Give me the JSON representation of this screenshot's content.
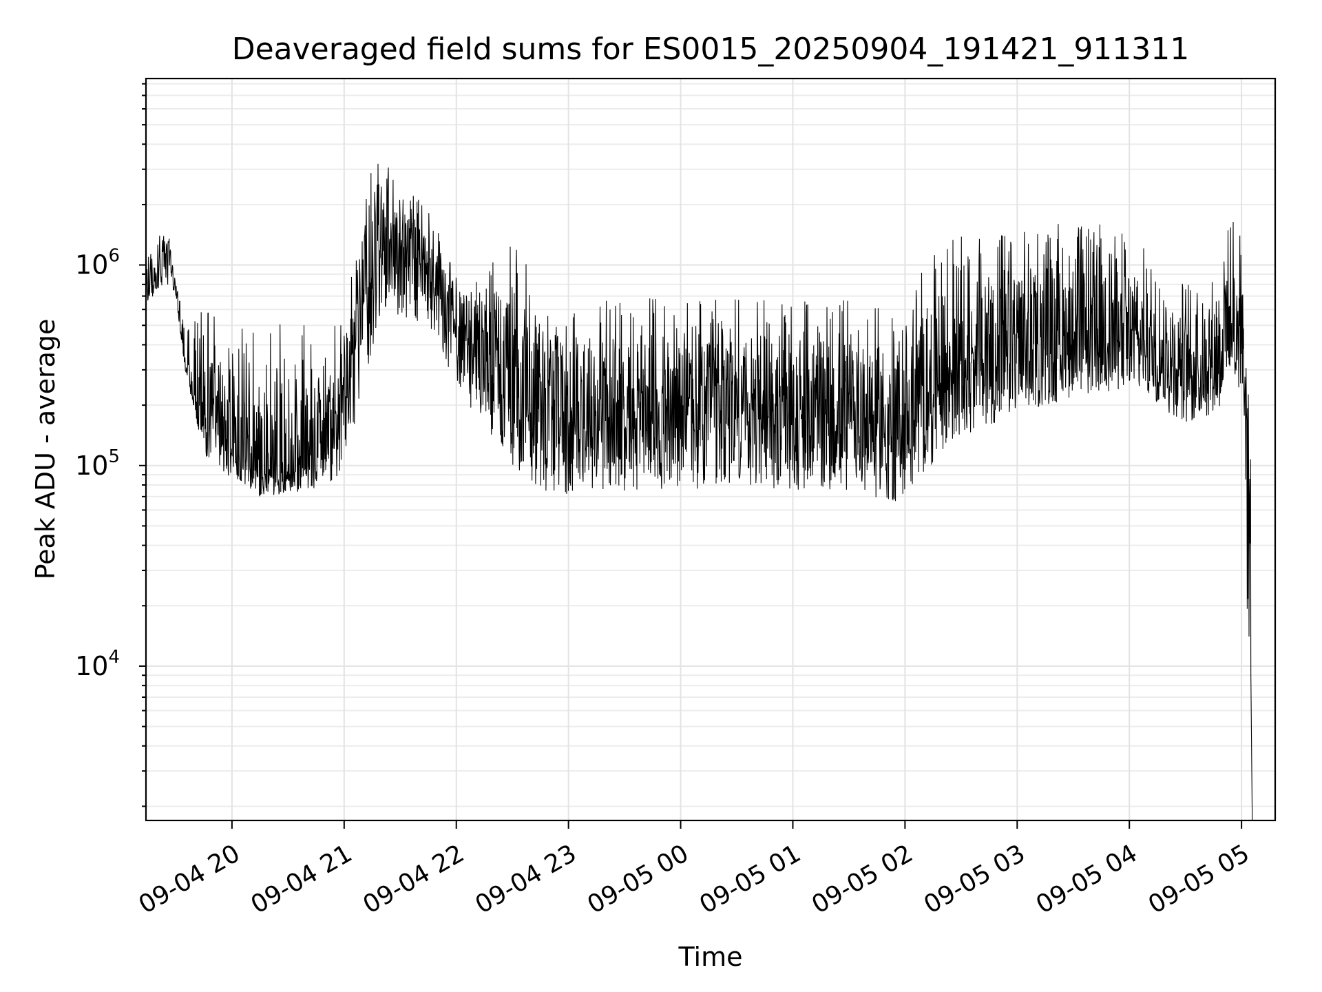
{
  "chart_data": {
    "type": "line",
    "title": "Deaveraged field sums for ES0015_20250904_191421_911311",
    "xlabel": "Time",
    "ylabel": "Peak ADU - average",
    "yscale": "log",
    "ylim": [
      1700,
      8500000
    ],
    "xlim": [
      "2025-09-04 19:14",
      "2025-09-05 05:18"
    ],
    "grid": "on",
    "xticks": [
      {
        "at": "2025-09-04 20:00",
        "label": "09-04 20"
      },
      {
        "at": "2025-09-04 21:00",
        "label": "09-04 21"
      },
      {
        "at": "2025-09-04 22:00",
        "label": "09-04 22"
      },
      {
        "at": "2025-09-04 23:00",
        "label": "09-04 23"
      },
      {
        "at": "2025-09-05 00:00",
        "label": "09-05 00"
      },
      {
        "at": "2025-09-05 01:00",
        "label": "09-05 01"
      },
      {
        "at": "2025-09-05 02:00",
        "label": "09-05 02"
      },
      {
        "at": "2025-09-05 03:00",
        "label": "09-05 03"
      },
      {
        "at": "2025-09-05 04:00",
        "label": "09-05 04"
      },
      {
        "at": "2025-09-05 05:00",
        "label": "09-05 05"
      }
    ],
    "yticks": [
      {
        "value": 10000,
        "base": "10",
        "exp": "4"
      },
      {
        "value": 100000,
        "base": "10",
        "exp": "5"
      },
      {
        "value": 1000000,
        "base": "10",
        "exp": "6"
      }
    ],
    "series": [
      {
        "x": [
          "2025-09-04 19:14",
          "2025-09-04 19:20",
          "2025-09-04 19:26",
          "2025-09-04 19:30",
          "2025-09-04 19:35",
          "2025-09-04 19:45",
          "2025-09-04 20:00",
          "2025-09-04 20:15",
          "2025-09-04 20:30",
          "2025-09-04 20:45",
          "2025-09-04 21:00",
          "2025-09-04 21:10",
          "2025-09-04 21:20",
          "2025-09-04 21:30",
          "2025-09-04 21:45",
          "2025-09-04 22:00",
          "2025-09-04 22:15",
          "2025-09-04 22:30",
          "2025-09-04 22:45",
          "2025-09-04 23:00",
          "2025-09-04 23:30",
          "2025-09-05 00:00",
          "2025-09-05 00:30",
          "2025-09-05 01:00",
          "2025-09-05 01:30",
          "2025-09-05 02:00",
          "2025-09-05 02:15",
          "2025-09-05 02:30",
          "2025-09-05 03:00",
          "2025-09-05 03:30",
          "2025-09-05 04:00",
          "2025-09-05 04:15",
          "2025-09-05 04:30",
          "2025-09-05 04:45",
          "2025-09-05 05:00",
          "2025-09-05 05:05"
        ],
        "low": [
          650000,
          700000,
          800000,
          700000,
          300000,
          110000,
          85000,
          70000,
          72000,
          75000,
          90000,
          250000,
          500000,
          550000,
          500000,
          250000,
          150000,
          100000,
          75000,
          70000,
          75000,
          75000,
          80000,
          75000,
          70000,
          65000,
          100000,
          140000,
          180000,
          220000,
          240000,
          200000,
          160000,
          180000,
          250000,
          2000
        ],
        "typical": [
          850000,
          900000,
          1300000,
          700000,
          300000,
          180000,
          130000,
          90000,
          95000,
          110000,
          180000,
          700000,
          1300000,
          1200000,
          900000,
          500000,
          350000,
          300000,
          250000,
          170000,
          200000,
          180000,
          190000,
          170000,
          160000,
          150000,
          260000,
          320000,
          380000,
          420000,
          450000,
          380000,
          300000,
          350000,
          550000,
          60000
        ],
        "high": [
          1100000,
          1400000,
          1450000,
          900000,
          500000,
          600000,
          550000,
          520000,
          500000,
          500000,
          550000,
          2500000,
          3500000,
          2500000,
          2000000,
          1000000,
          900000,
          1500000,
          700000,
          700000,
          700000,
          700000,
          700000,
          650000,
          700000,
          600000,
          1300000,
          1400000,
          1500000,
          1700000,
          1500000,
          1000000,
          800000,
          1100000,
          2000000,
          100000
        ]
      }
    ]
  }
}
